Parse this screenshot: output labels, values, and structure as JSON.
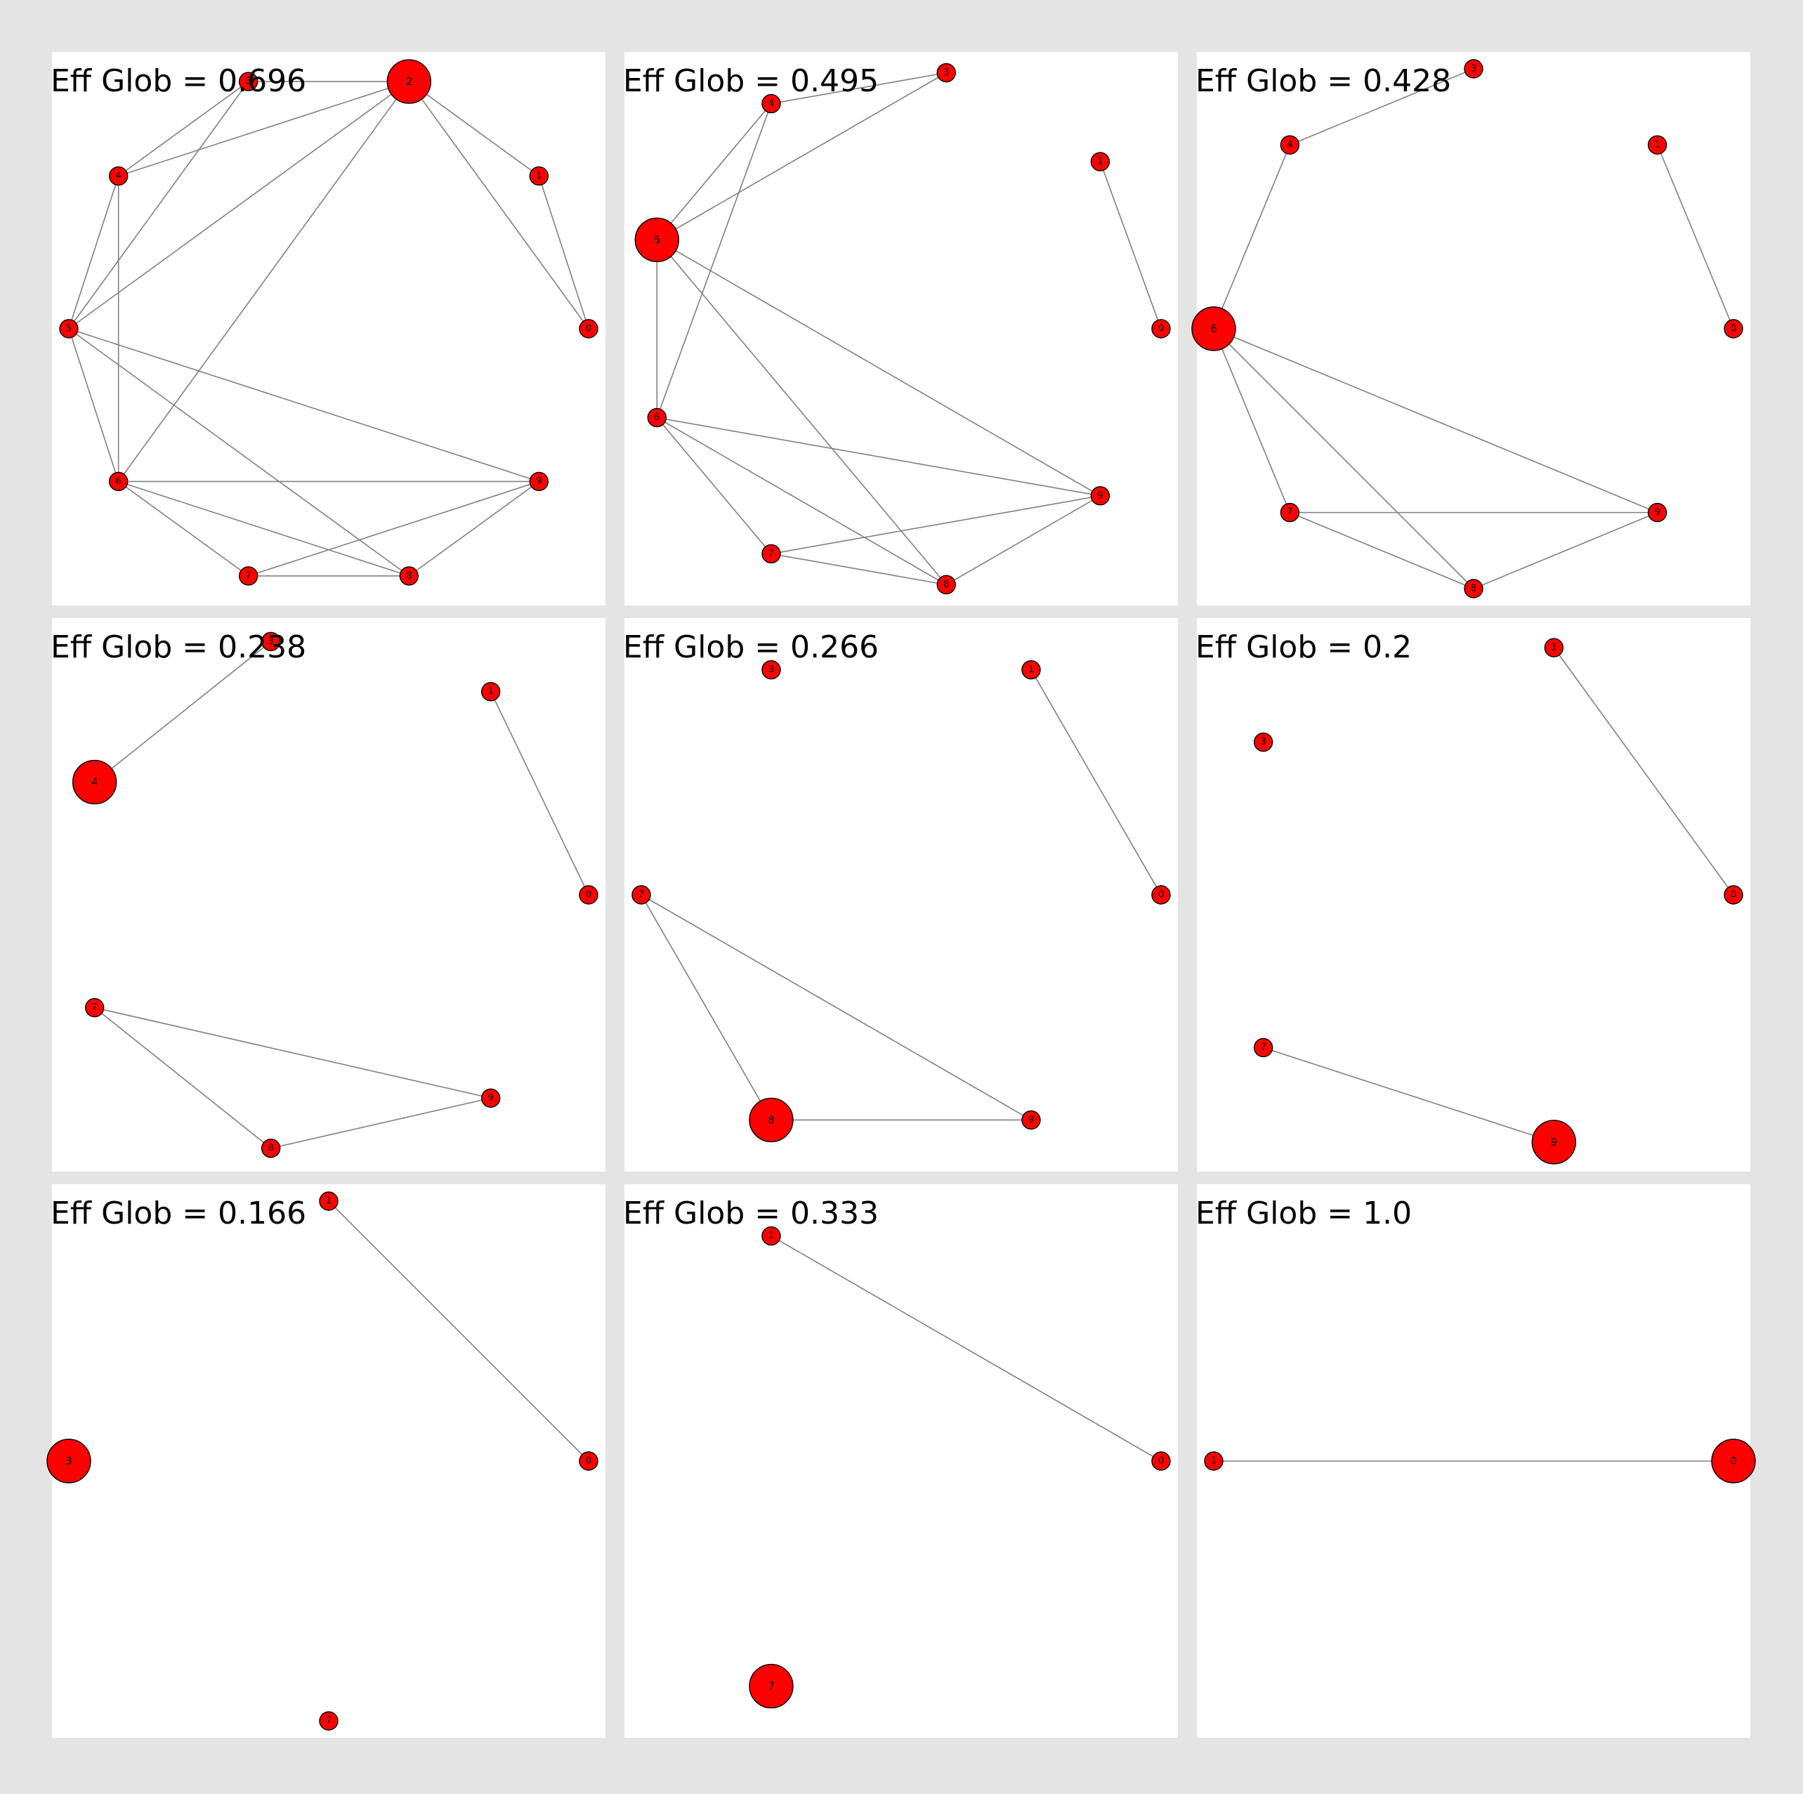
{
  "figure": {
    "background_color": "#e4e4e4",
    "node_color": "#ff0000",
    "edge_color": "#808080",
    "ring_nodes": [
      "0",
      "1",
      "2",
      "3",
      "4",
      "5",
      "6",
      "7",
      "8",
      "9"
    ]
  },
  "panels": [
    {
      "title": "Eff Glob = 0.696",
      "nodes": [
        "0",
        "1",
        "2",
        "3",
        "4",
        "5",
        "6",
        "7",
        "8",
        "9"
      ],
      "large_node": "2",
      "edges": [
        [
          "7",
          "8"
        ],
        [
          "7",
          "6"
        ],
        [
          "7",
          "9"
        ],
        [
          "8",
          "6"
        ],
        [
          "8",
          "5"
        ],
        [
          "8",
          "9"
        ],
        [
          "6",
          "9"
        ],
        [
          "6",
          "5"
        ],
        [
          "6",
          "4"
        ],
        [
          "6",
          "2"
        ],
        [
          "5",
          "9"
        ],
        [
          "5",
          "4"
        ],
        [
          "5",
          "3"
        ],
        [
          "5",
          "2"
        ],
        [
          "4",
          "3"
        ],
        [
          "4",
          "2"
        ],
        [
          "3",
          "2"
        ],
        [
          "2",
          "1"
        ],
        [
          "2",
          "0"
        ],
        [
          "1",
          "0"
        ]
      ]
    },
    {
      "title": "Eff Glob = 0.495",
      "nodes": [
        "0",
        "1",
        "3",
        "4",
        "5",
        "6",
        "7",
        "8",
        "9"
      ],
      "large_node": "5",
      "edges": [
        [
          "7",
          "8"
        ],
        [
          "7",
          "6"
        ],
        [
          "7",
          "9"
        ],
        [
          "8",
          "6"
        ],
        [
          "8",
          "5"
        ],
        [
          "8",
          "9"
        ],
        [
          "6",
          "9"
        ],
        [
          "6",
          "5"
        ],
        [
          "6",
          "4"
        ],
        [
          "5",
          "9"
        ],
        [
          "5",
          "4"
        ],
        [
          "5",
          "3"
        ],
        [
          "4",
          "3"
        ],
        [
          "1",
          "0"
        ]
      ]
    },
    {
      "title": "Eff Glob = 0.428",
      "nodes": [
        "0",
        "1",
        "3",
        "4",
        "6",
        "7",
        "8",
        "9"
      ],
      "large_node": "6",
      "edges": [
        [
          "7",
          "8"
        ],
        [
          "7",
          "6"
        ],
        [
          "7",
          "9"
        ],
        [
          "8",
          "6"
        ],
        [
          "8",
          "9"
        ],
        [
          "6",
          "9"
        ],
        [
          "6",
          "4"
        ],
        [
          "4",
          "3"
        ],
        [
          "1",
          "0"
        ]
      ]
    },
    {
      "title": "Eff Glob = 0.238",
      "nodes": [
        "0",
        "1",
        "3",
        "4",
        "7",
        "8",
        "9"
      ],
      "large_node": "4",
      "edges": [
        [
          "7",
          "8"
        ],
        [
          "7",
          "9"
        ],
        [
          "8",
          "9"
        ],
        [
          "4",
          "3"
        ],
        [
          "1",
          "0"
        ]
      ]
    },
    {
      "title": "Eff Glob = 0.266",
      "nodes": [
        "0",
        "1",
        "3",
        "7",
        "8",
        "9"
      ],
      "large_node": "8",
      "edges": [
        [
          "7",
          "8"
        ],
        [
          "7",
          "9"
        ],
        [
          "8",
          "9"
        ],
        [
          "1",
          "0"
        ]
      ]
    },
    {
      "title": "Eff Glob = 0.2",
      "nodes": [
        "0",
        "1",
        "3",
        "7",
        "9"
      ],
      "large_node": "9",
      "edges": [
        [
          "7",
          "9"
        ],
        [
          "1",
          "0"
        ]
      ]
    },
    {
      "title": "Eff Glob = 0.166",
      "nodes": [
        "0",
        "1",
        "3",
        "7"
      ],
      "large_node": "3",
      "edges": [
        [
          "1",
          "0"
        ]
      ]
    },
    {
      "title": "Eff Glob = 0.333",
      "nodes": [
        "0",
        "1",
        "7"
      ],
      "large_node": "7",
      "edges": [
        [
          "1",
          "0"
        ]
      ]
    },
    {
      "title": "Eff Glob = 1.0",
      "nodes": [
        "0",
        "1"
      ],
      "large_node": "0",
      "edges": [
        [
          "1",
          "0"
        ]
      ]
    }
  ]
}
